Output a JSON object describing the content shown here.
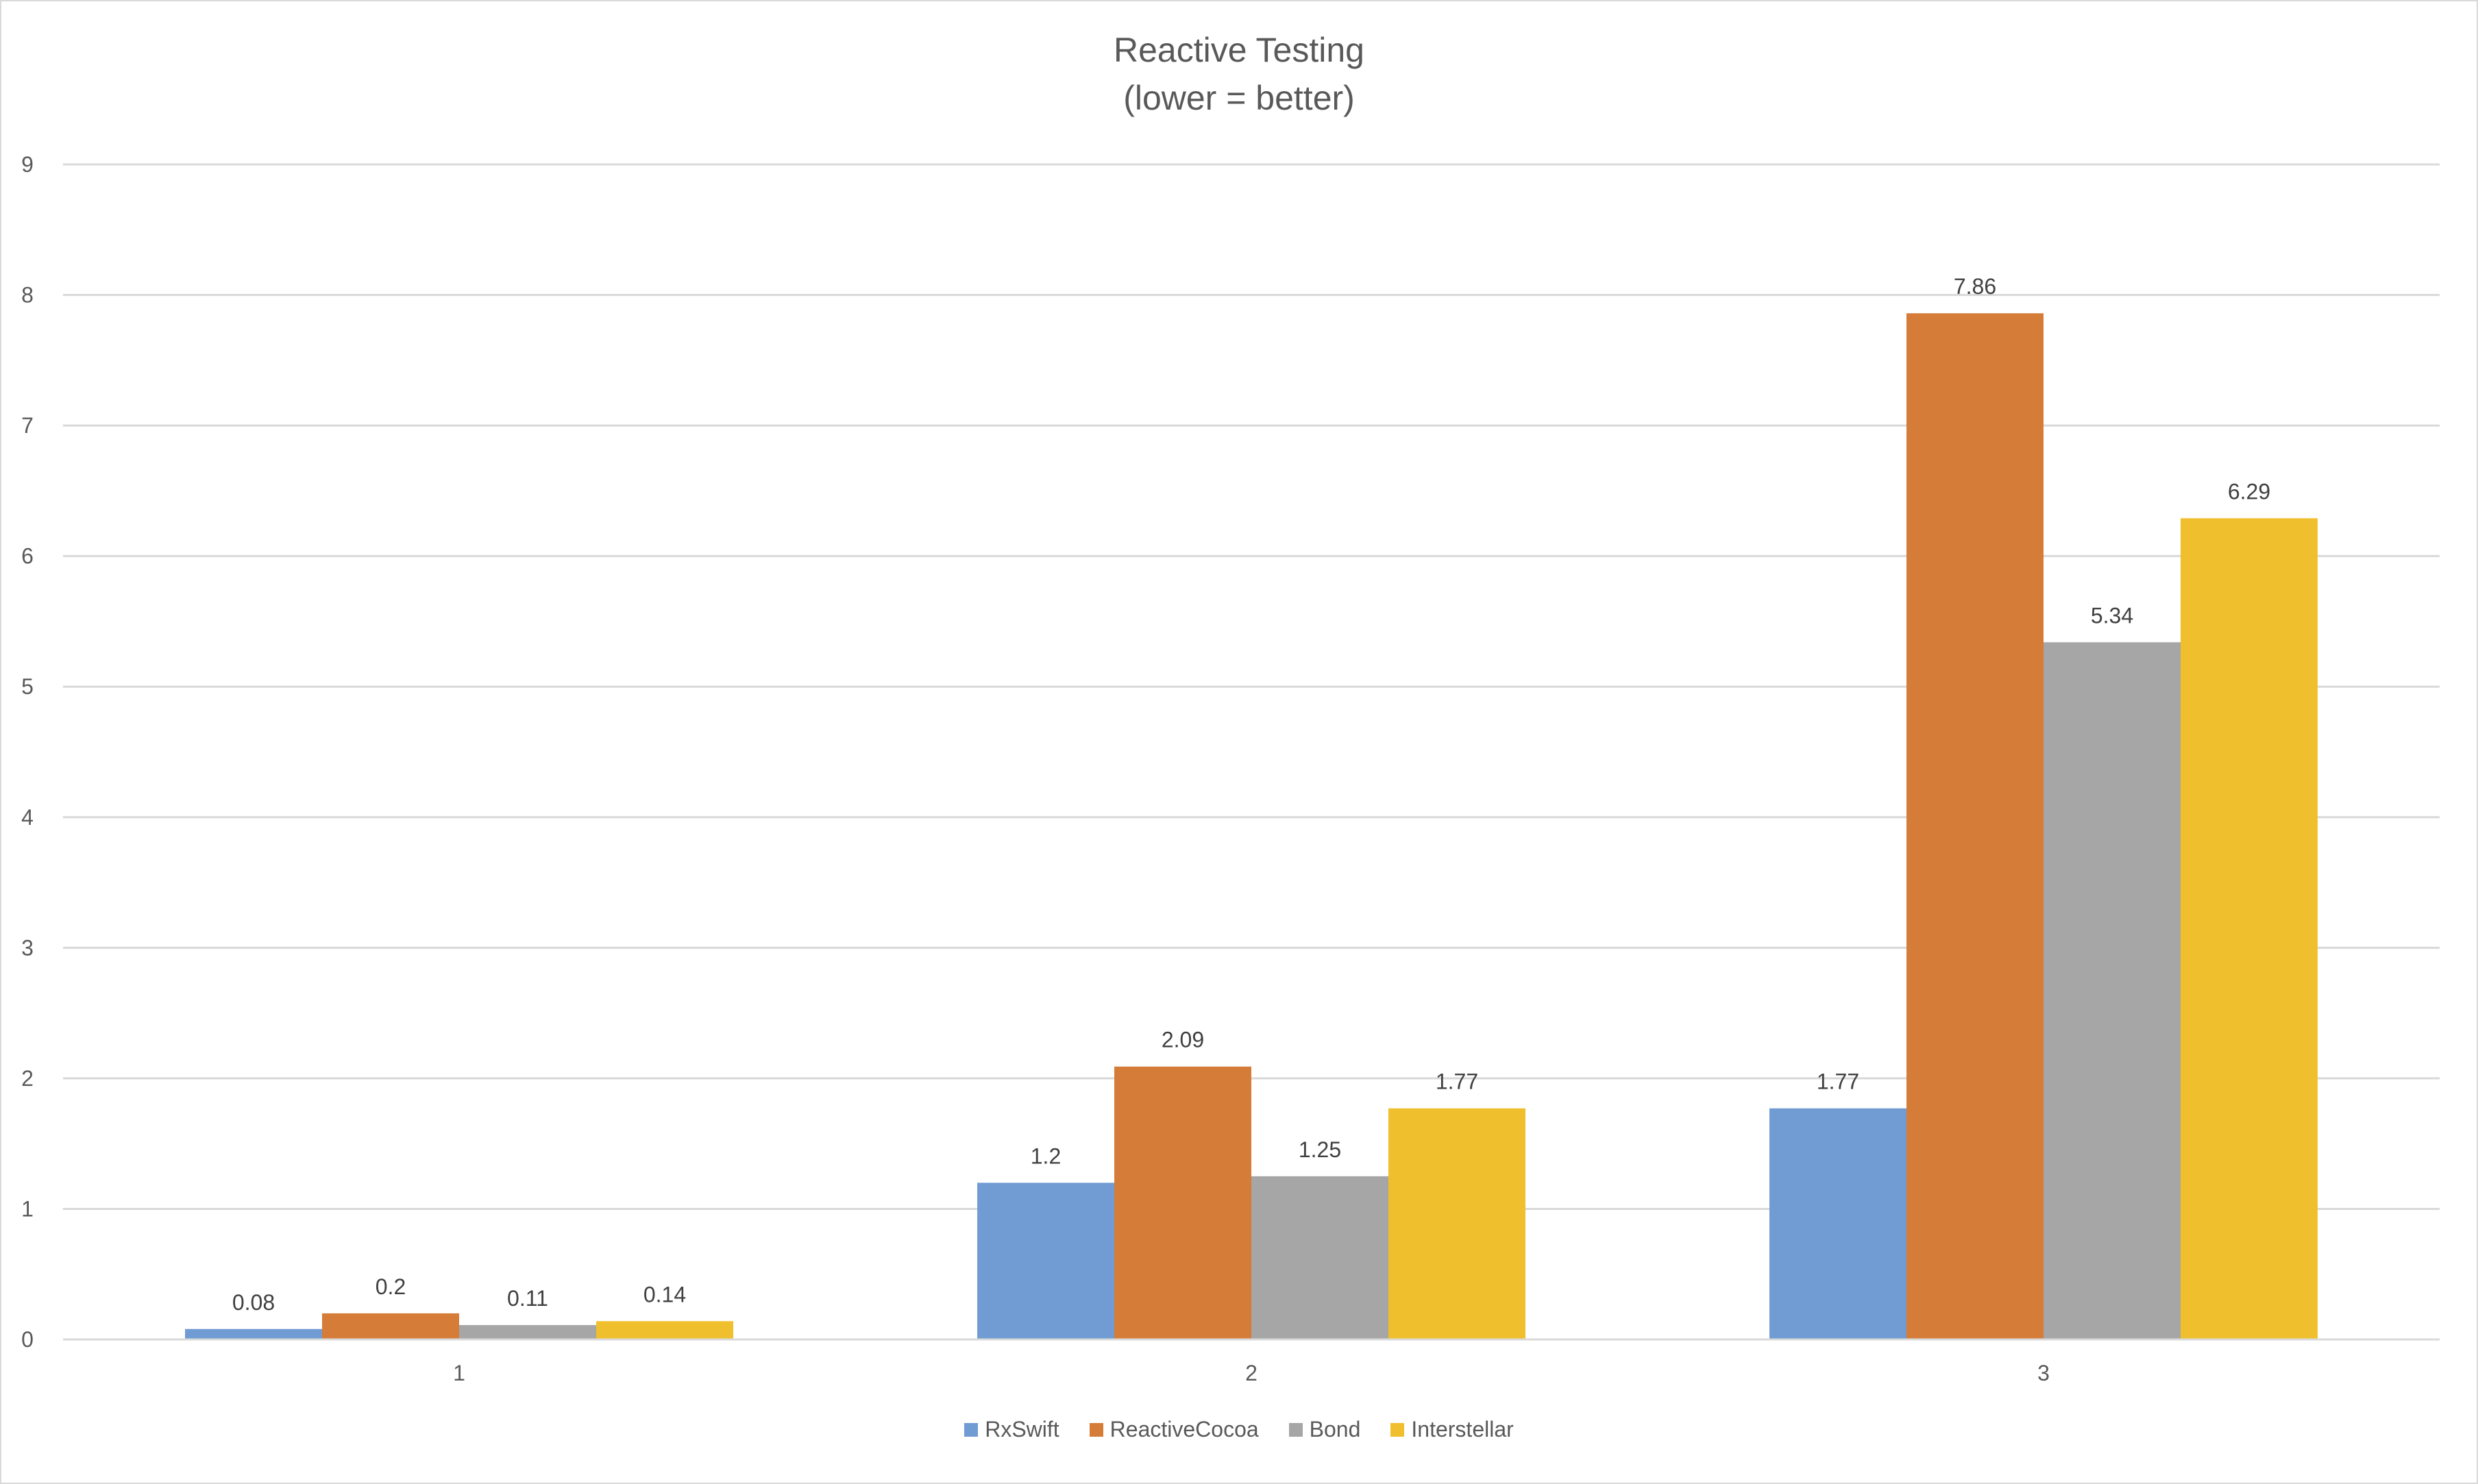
{
  "chart_data": {
    "type": "bar",
    "title": "Reactive Testing",
    "subtitle": "(lower = better)",
    "categories": [
      "1",
      "2",
      "3"
    ],
    "series": [
      {
        "name": "RxSwift",
        "color": "#709cd3",
        "values": [
          0.08,
          1.2,
          1.77
        ]
      },
      {
        "name": "ReactiveCocoa",
        "color": "#d67c39",
        "values": [
          0.2,
          2.09,
          7.86
        ]
      },
      {
        "name": "Bond",
        "color": "#a6a6a6",
        "values": [
          0.11,
          1.25,
          5.34
        ]
      },
      {
        "name": "Interstellar",
        "color": "#f0bf2d",
        "values": [
          0.14,
          1.77,
          6.29
        ]
      }
    ],
    "data_labels": [
      [
        "0.08",
        "1.2",
        "1.77"
      ],
      [
        "0.2",
        "2.09",
        "7.86"
      ],
      [
        "0.11",
        "1.25",
        "5.34"
      ],
      [
        "0.14",
        "1.77",
        "6.29"
      ]
    ],
    "y_ticks": [
      "0",
      "1",
      "2",
      "3",
      "4",
      "5",
      "6",
      "7",
      "8",
      "9"
    ],
    "ylim": [
      0,
      9
    ],
    "xlabel": "",
    "ylabel": "",
    "grid": true,
    "legend_position": "bottom-center",
    "gridline_color": "#d9d9d9",
    "text_color": "#595959"
  }
}
